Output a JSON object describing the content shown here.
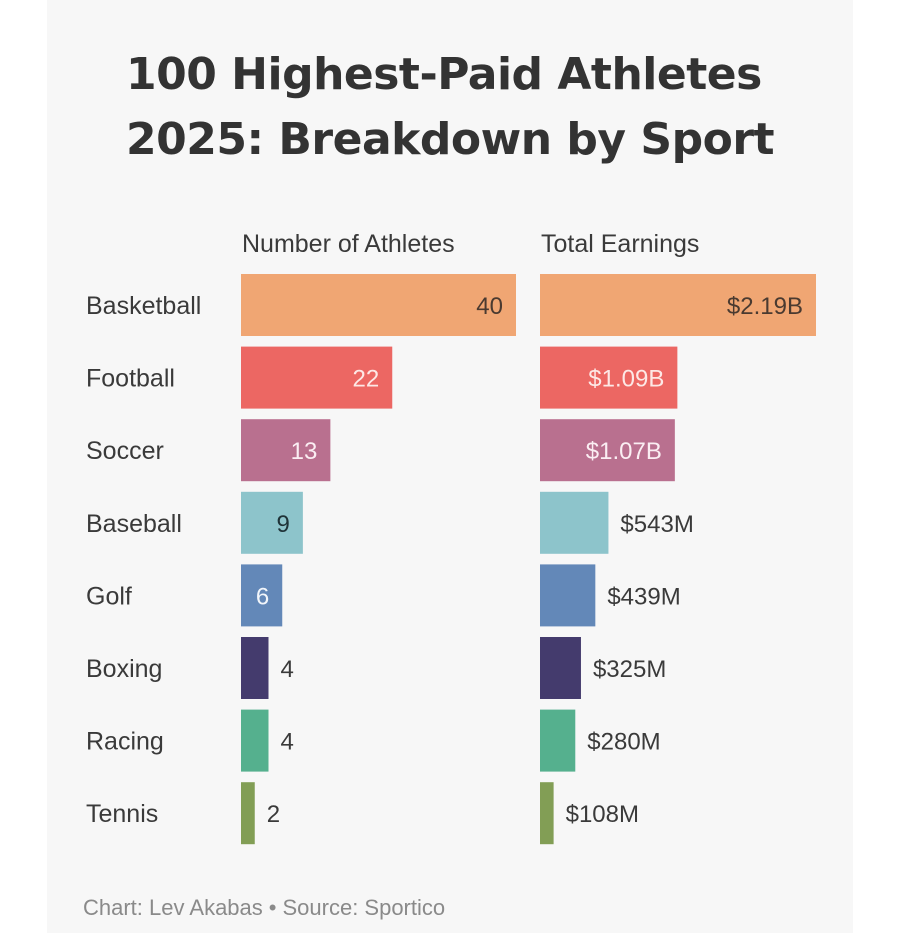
{
  "title": {
    "line1": "100 Highest-Paid Athletes",
    "line2": "2025: Breakdown by Sport"
  },
  "footer": {
    "chart_credit": "Chart: Lev Akabas",
    "separator": "•",
    "source": "Source: Sportico"
  },
  "chart_data": {
    "type": "bar",
    "orientation": "horizontal",
    "title": "100 Highest-Paid Athletes 2025: Breakdown by Sport",
    "categories": [
      "Basketball",
      "Football",
      "Soccer",
      "Baseball",
      "Golf",
      "Boxing",
      "Racing",
      "Tennis"
    ],
    "colors": [
      "#F0A673",
      "#EC6763",
      "#B9708F",
      "#8DC4CB",
      "#6388B8",
      "#443B6D",
      "#55B08E",
      "#829E55"
    ],
    "series": [
      {
        "name": "Number of Athletes",
        "values": [
          40,
          22,
          13,
          9,
          6,
          4,
          4,
          2
        ],
        "labels": [
          "40",
          "22",
          "13",
          "9",
          "6",
          "4",
          "4",
          "2"
        ],
        "label_inside": [
          true,
          true,
          true,
          true,
          true,
          false,
          false,
          false
        ],
        "label_color": [
          "#4a3a30",
          "#fde8e6",
          "#fbeef3",
          "#1f3338",
          "#f2f6fb",
          "#3a3a3a",
          "#3a3a3a",
          "#3a3a3a"
        ],
        "xlim": [
          0,
          40
        ]
      },
      {
        "name": "Total Earnings",
        "unit": "USD billions",
        "values": [
          2.19,
          1.09,
          1.07,
          0.543,
          0.439,
          0.325,
          0.28,
          0.108
        ],
        "labels": [
          "$2.19B",
          "$1.09B",
          "$1.07B",
          "$543M",
          "$439M",
          "$325M",
          "$280M",
          "$108M"
        ],
        "label_inside": [
          true,
          true,
          true,
          false,
          false,
          false,
          false,
          false
        ],
        "label_color": [
          "#4a3a30",
          "#fde8e6",
          "#fbeef3",
          "#3a3a3a",
          "#3a3a3a",
          "#3a3a3a",
          "#3a3a3a",
          "#3a3a3a"
        ],
        "xlim": [
          0,
          2.19
        ]
      }
    ],
    "xlabel": "",
    "ylabel": "",
    "grid": false,
    "legend": "none"
  }
}
